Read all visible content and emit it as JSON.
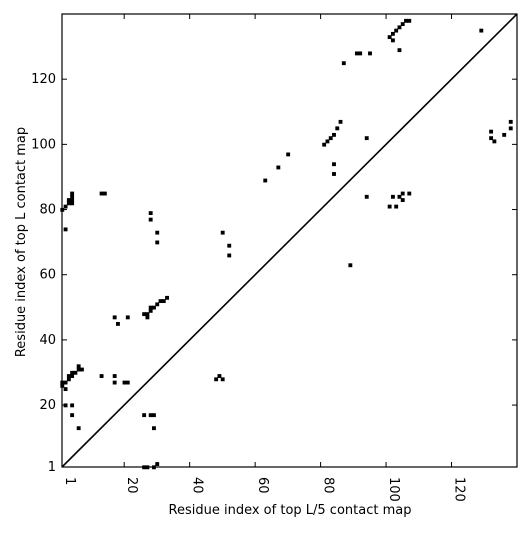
{
  "chart_data": {
    "type": "scatter",
    "subtype": "contact-map",
    "xlabel": "Residue index of top L/5 contact map",
    "ylabel": "Residue index of top L contact map",
    "xlim": [
      1,
      140
    ],
    "ylim": [
      1,
      140
    ],
    "x_ticks": [
      1,
      20,
      40,
      60,
      80,
      100,
      120
    ],
    "y_ticks": [
      1,
      20,
      40,
      60,
      80,
      100,
      120
    ],
    "diagonal": true,
    "grid": false,
    "marker_color": "#000000",
    "contacts_upper_left": [
      [
        1,
        80
      ],
      [
        2,
        81
      ],
      [
        2,
        74
      ],
      [
        3,
        82
      ],
      [
        3,
        83
      ],
      [
        4,
        82
      ],
      [
        4,
        83
      ],
      [
        4,
        84
      ],
      [
        4,
        85
      ],
      [
        13,
        85
      ],
      [
        14,
        85
      ],
      [
        50,
        73
      ],
      [
        52,
        69
      ],
      [
        52,
        66
      ],
      [
        67,
        93
      ],
      [
        70,
        97
      ],
      [
        63,
        89
      ],
      [
        81,
        100
      ],
      [
        82,
        101
      ],
      [
        83,
        102
      ],
      [
        84,
        103
      ],
      [
        85,
        105
      ],
      [
        86,
        107
      ],
      [
        87,
        125
      ],
      [
        84,
        94
      ],
      [
        84,
        91
      ],
      [
        91,
        128
      ],
      [
        92,
        128
      ],
      [
        95,
        128
      ],
      [
        94,
        102
      ],
      [
        94,
        84
      ],
      [
        89,
        63
      ],
      [
        101,
        133
      ],
      [
        102,
        132
      ],
      [
        102,
        134
      ],
      [
        103,
        135
      ],
      [
        104,
        136
      ],
      [
        105,
        137
      ],
      [
        106,
        138
      ],
      [
        107,
        138
      ],
      [
        104,
        129
      ],
      [
        101,
        81
      ],
      [
        102,
        84
      ],
      [
        103,
        81
      ],
      [
        104,
        84
      ],
      [
        105,
        83
      ],
      [
        105,
        85
      ],
      [
        107,
        85
      ],
      [
        129,
        135
      ],
      [
        1,
        26
      ],
      [
        1,
        27
      ],
      [
        2,
        27
      ],
      [
        2,
        25
      ],
      [
        3,
        28
      ],
      [
        3,
        29
      ],
      [
        4,
        29
      ],
      [
        4,
        30
      ],
      [
        5,
        30
      ],
      [
        6,
        31
      ],
      [
        6,
        32
      ],
      [
        7,
        31
      ],
      [
        2,
        20
      ],
      [
        4,
        20
      ],
      [
        4,
        17
      ],
      [
        6,
        13
      ],
      [
        13,
        29
      ],
      [
        17,
        29
      ],
      [
        17,
        27
      ],
      [
        17,
        47
      ],
      [
        18,
        45
      ],
      [
        20,
        27
      ],
      [
        21,
        27
      ],
      [
        21,
        47
      ],
      [
        26,
        48
      ],
      [
        27,
        47
      ],
      [
        27,
        48
      ],
      [
        28,
        49
      ],
      [
        28,
        50
      ],
      [
        29,
        50
      ],
      [
        30,
        51
      ],
      [
        31,
        52
      ],
      [
        32,
        52
      ],
      [
        33,
        53
      ],
      [
        28,
        77
      ],
      [
        28,
        79
      ],
      [
        30,
        73
      ],
      [
        30,
        70
      ],
      [
        26,
        17
      ],
      [
        28,
        17
      ],
      [
        29,
        17
      ],
      [
        29,
        13
      ],
      [
        30,
        2
      ],
      [
        26,
        1
      ],
      [
        27,
        1
      ],
      [
        29,
        1
      ],
      [
        48,
        28
      ],
      [
        49,
        29
      ],
      [
        50,
        28
      ],
      [
        132,
        104
      ],
      [
        132,
        102
      ],
      [
        133,
        101
      ],
      [
        136,
        103
      ],
      [
        138,
        105
      ],
      [
        138,
        107
      ]
    ]
  }
}
